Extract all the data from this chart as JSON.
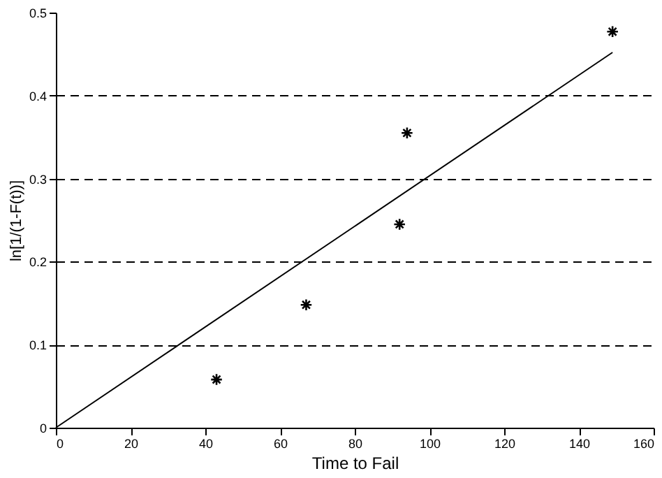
{
  "chart_data": {
    "type": "scatter",
    "xlabel": "Time to Fail",
    "ylabel": "ln[1/(1-F(t))]",
    "xlim": [
      0,
      160
    ],
    "xticks": [
      0,
      20,
      40,
      60,
      80,
      100,
      120,
      140,
      160
    ],
    "ylim": [
      0,
      0.5
    ],
    "yticks": [
      0,
      0.1,
      0.2,
      0.3,
      0.4,
      0.5
    ],
    "grid": "y",
    "series": [
      {
        "color": "#000000",
        "marker": "cross",
        "x": [
          43,
          67,
          92,
          94,
          149
        ],
        "values": [
          0.058,
          0.148,
          0.245,
          0.355,
          0.477
        ]
      },
      {
        "type": "line",
        "color": "#000000",
        "x": [
          0,
          149
        ],
        "values": [
          0,
          0.452
        ],
        "line_style": "solid"
      }
    ]
  }
}
